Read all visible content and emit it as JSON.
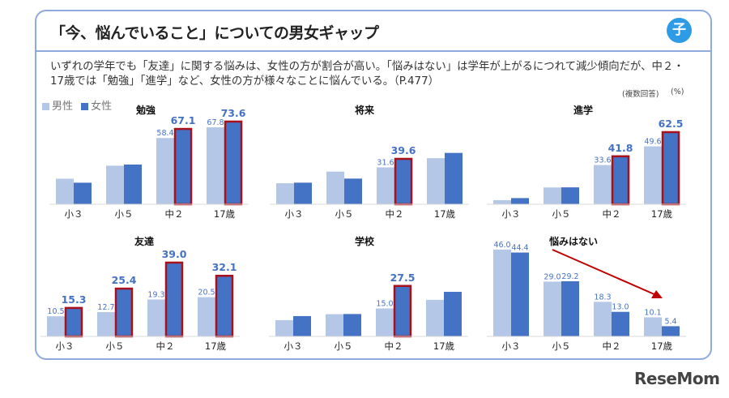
{
  "header": {
    "title": "「今、悩んでいること」についての男女ギャップ",
    "badge": "子"
  },
  "description": "いずれの学年でも「友達」に関する悩みは、女性の方が割合が高い。「悩みはない」は学年が上がるにつれて減少傾向だが、中２・17歳では「勉強」「進学」など、女性の方が様々なことに悩んでいる。（P.477）",
  "notes": {
    "multiple": "(複数回答)",
    "unit": "(%)"
  },
  "legend": {
    "male": "男性",
    "female": "女性"
  },
  "colors": {
    "male": "#b4c7e7",
    "female": "#4472c4",
    "highlight": "#a8101c",
    "label": "#4472c4",
    "arrow": "#c00000"
  },
  "logo": "ReseMom",
  "chart_data": [
    {
      "type": "bar",
      "title": "勉強",
      "categories": [
        "小３",
        "小５",
        "中２",
        "17歳"
      ],
      "series": [
        {
          "name": "男性",
          "values": [
            22.5,
            34,
            58.4,
            67.8
          ]
        },
        {
          "name": "女性",
          "values": [
            19,
            35,
            67.1,
            73.6
          ]
        }
      ],
      "male_labels": [
        "",
        "",
        "58.4",
        "67.8"
      ],
      "female_labels": [
        "",
        "",
        "67.1",
        "73.6"
      ],
      "highlight": [
        false,
        false,
        true,
        true
      ]
    },
    {
      "type": "bar",
      "title": "将来",
      "categories": [
        "小３",
        "小５",
        "中２",
        "17歳"
      ],
      "series": [
        {
          "name": "男性",
          "values": [
            18,
            28,
            31.6,
            39.5
          ]
        },
        {
          "name": "女性",
          "values": [
            18.5,
            22,
            39.6,
            44
          ]
        }
      ],
      "male_labels": [
        "",
        "",
        "31.6",
        ""
      ],
      "female_labels": [
        "",
        "",
        "39.6",
        ""
      ],
      "highlight": [
        false,
        false,
        true,
        false
      ]
    },
    {
      "type": "bar",
      "title": "進学",
      "categories": [
        "小３",
        "小５",
        "中２",
        "17歳"
      ],
      "series": [
        {
          "name": "男性",
          "values": [
            3.5,
            14.4,
            33.6,
            49.6
          ]
        },
        {
          "name": "女性",
          "values": [
            5.3,
            14.5,
            41.8,
            62.5
          ]
        }
      ],
      "male_labels": [
        "",
        "",
        "33.6",
        "49.6"
      ],
      "female_labels": [
        "",
        "",
        "41.8",
        "62.5"
      ],
      "highlight": [
        false,
        false,
        true,
        true
      ]
    },
    {
      "type": "bar",
      "title": "友達",
      "categories": [
        "小３",
        "小５",
        "中２",
        "17歳"
      ],
      "series": [
        {
          "name": "男性",
          "values": [
            10.5,
            12.7,
            19.3,
            20.5
          ]
        },
        {
          "name": "女性",
          "values": [
            15.3,
            25.4,
            39.0,
            32.1
          ]
        }
      ],
      "male_labels": [
        "10.5",
        "12.7",
        "19.3",
        "20.5"
      ],
      "female_labels": [
        "15.3",
        "25.4",
        "39.0",
        "32.1"
      ],
      "highlight": [
        true,
        true,
        true,
        true
      ]
    },
    {
      "type": "bar",
      "title": "学校",
      "categories": [
        "小３",
        "小５",
        "中２",
        "17歳"
      ],
      "series": [
        {
          "name": "男性",
          "values": [
            8.7,
            11.9,
            15.0,
            19.6
          ]
        },
        {
          "name": "女性",
          "values": [
            10.9,
            12,
            27.5,
            23.9
          ]
        }
      ],
      "male_labels": [
        "",
        "",
        "15.0",
        ""
      ],
      "female_labels": [
        "",
        "",
        "27.5",
        ""
      ],
      "highlight": [
        false,
        false,
        true,
        false
      ]
    },
    {
      "type": "bar",
      "title": "悩みはない",
      "categories": [
        "小３",
        "小５",
        "中２",
        "17歳"
      ],
      "series": [
        {
          "name": "男性",
          "values": [
            46.0,
            29.0,
            18.3,
            10.1
          ]
        },
        {
          "name": "女性",
          "values": [
            44.4,
            29.2,
            13.0,
            5.4
          ]
        }
      ],
      "male_labels": [
        "46.0",
        "29.0",
        "18.3",
        "10.1"
      ],
      "female_labels": [
        "44.4",
        "29.2",
        "13.0",
        "5.4"
      ],
      "highlight": [
        false,
        false,
        false,
        false
      ],
      "trend_arrow": "decreasing"
    }
  ]
}
